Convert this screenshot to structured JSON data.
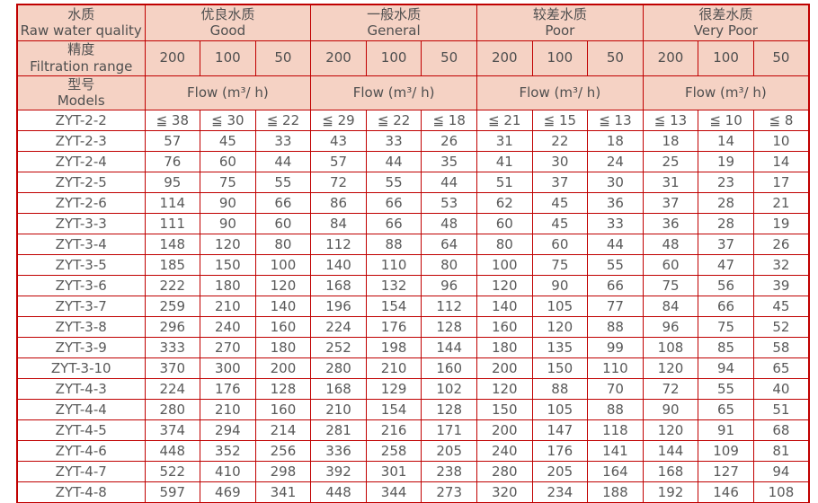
{
  "table": {
    "header": {
      "raw_water_quality": {
        "zh": "水质",
        "en": "Raw water quality"
      },
      "quality_groups": [
        {
          "zh": "优良水质",
          "en": "Good"
        },
        {
          "zh": "一般水质",
          "en": "General"
        },
        {
          "zh": "较差水质",
          "en": "Poor"
        },
        {
          "zh": "很差水质",
          "en": "Very Poor"
        }
      ],
      "filtration": {
        "zh": "精度",
        "en": "Filtration range"
      },
      "filtration_values": [
        "200",
        "100",
        "50",
        "200",
        "100",
        "50",
        "200",
        "100",
        "50",
        "200",
        "100",
        "50"
      ],
      "models": {
        "zh": "型号",
        "en": "Models"
      },
      "flow_label": "Flow (m³/ h)"
    },
    "rows": [
      {
        "model": "ZYT-2-2",
        "values": [
          "≦ 38",
          "≦ 30",
          "≦ 22",
          "≦ 29",
          "≦ 22",
          "≦ 18",
          "≦ 21",
          "≦ 15",
          "≦ 13",
          "≦ 13",
          "≦ 10",
          "≦ 8"
        ]
      },
      {
        "model": "ZYT-2-3",
        "values": [
          "57",
          "45",
          "33",
          "43",
          "33",
          "26",
          "31",
          "22",
          "18",
          "18",
          "14",
          "10"
        ]
      },
      {
        "model": "ZYT-2-4",
        "values": [
          "76",
          "60",
          "44",
          "57",
          "44",
          "35",
          "41",
          "30",
          "24",
          "25",
          "19",
          "14"
        ]
      },
      {
        "model": "ZYT-2-5",
        "values": [
          "95",
          "75",
          "55",
          "72",
          "55",
          "44",
          "51",
          "37",
          "30",
          "31",
          "23",
          "17"
        ]
      },
      {
        "model": "ZYT-2-6",
        "values": [
          "114",
          "90",
          "66",
          "86",
          "66",
          "53",
          "62",
          "45",
          "36",
          "37",
          "28",
          "21"
        ]
      },
      {
        "model": "ZYT-3-3",
        "values": [
          "111",
          "90",
          "60",
          "84",
          "66",
          "48",
          "60",
          "45",
          "33",
          "36",
          "28",
          "19"
        ]
      },
      {
        "model": "ZYT-3-4",
        "values": [
          "148",
          "120",
          "80",
          "112",
          "88",
          "64",
          "80",
          "60",
          "44",
          "48",
          "37",
          "26"
        ]
      },
      {
        "model": "ZYT-3-5",
        "values": [
          "185",
          "150",
          "100",
          "140",
          "110",
          "80",
          "100",
          "75",
          "55",
          "60",
          "47",
          "32"
        ]
      },
      {
        "model": "ZYT-3-6",
        "values": [
          "222",
          "180",
          "120",
          "168",
          "132",
          "96",
          "120",
          "90",
          "66",
          "75",
          "56",
          "39"
        ]
      },
      {
        "model": "ZYT-3-7",
        "values": [
          "259",
          "210",
          "140",
          "196",
          "154",
          "112",
          "140",
          "105",
          "77",
          "84",
          "66",
          "45"
        ]
      },
      {
        "model": "ZYT-3-8",
        "values": [
          "296",
          "240",
          "160",
          "224",
          "176",
          "128",
          "160",
          "120",
          "88",
          "96",
          "75",
          "52"
        ]
      },
      {
        "model": "ZYT-3-9",
        "values": [
          "333",
          "270",
          "180",
          "252",
          "198",
          "144",
          "180",
          "135",
          "99",
          "108",
          "85",
          "58"
        ]
      },
      {
        "model": "ZYT-3-10",
        "values": [
          "370",
          "300",
          "200",
          "280",
          "210",
          "160",
          "200",
          "150",
          "110",
          "120",
          "94",
          "65"
        ]
      },
      {
        "model": "ZYT-4-3",
        "values": [
          "224",
          "176",
          "128",
          "168",
          "129",
          "102",
          "120",
          "88",
          "70",
          "72",
          "55",
          "40"
        ]
      },
      {
        "model": "ZYT-4-4",
        "values": [
          "280",
          "210",
          "160",
          "210",
          "154",
          "128",
          "150",
          "105",
          "88",
          "90",
          "65",
          "51"
        ]
      },
      {
        "model": "ZYT-4-5",
        "values": [
          "374",
          "294",
          "214",
          "281",
          "216",
          "171",
          "200",
          "147",
          "118",
          "120",
          "91",
          "68"
        ]
      },
      {
        "model": "ZYT-4-6",
        "values": [
          "448",
          "352",
          "256",
          "336",
          "258",
          "205",
          "240",
          "176",
          "141",
          "144",
          "109",
          "81"
        ]
      },
      {
        "model": "ZYT-4-7",
        "values": [
          "522",
          "410",
          "298",
          "392",
          "301",
          "238",
          "280",
          "205",
          "164",
          "168",
          "127",
          "94"
        ]
      },
      {
        "model": "ZYT-4-8",
        "values": [
          "597",
          "469",
          "341",
          "448",
          "344",
          "273",
          "320",
          "234",
          "188",
          "192",
          "146",
          "108"
        ]
      }
    ]
  },
  "colors": {
    "header_bg": "#f5d2c4",
    "border": "#c00000",
    "text": "#4f4f4f",
    "data_text": "#595959",
    "page_bg": "#ffffff"
  }
}
